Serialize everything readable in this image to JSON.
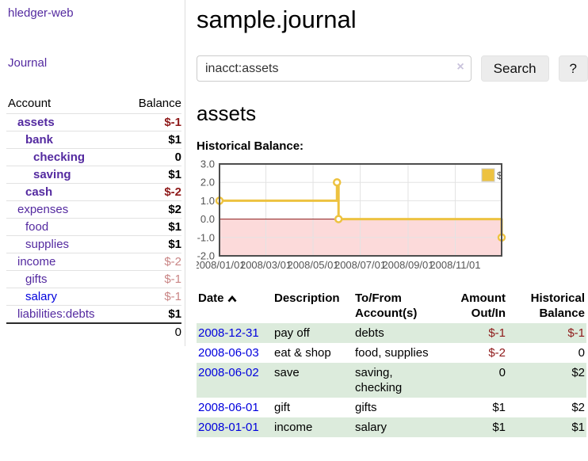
{
  "sidebar": {
    "brand": "hledger-web",
    "nav": {
      "journal": "Journal"
    },
    "accounts": {
      "col_account": "Account",
      "col_balance": "Balance",
      "rows": [
        {
          "name": "assets",
          "balance": "$-1",
          "depth": 1,
          "bold": true,
          "muted": false,
          "link_blue": false
        },
        {
          "name": "bank",
          "balance": "$1",
          "depth": 2,
          "bold": true,
          "muted": false,
          "link_blue": false
        },
        {
          "name": "checking",
          "balance": "0",
          "depth": 3,
          "bold": true,
          "muted": false,
          "link_blue": false
        },
        {
          "name": "saving",
          "balance": "$1",
          "depth": 3,
          "bold": true,
          "muted": false,
          "link_blue": false
        },
        {
          "name": "cash",
          "balance": "$-2",
          "depth": 2,
          "bold": true,
          "muted": false,
          "link_blue": false
        },
        {
          "name": "expenses",
          "balance": "$2",
          "depth": 1,
          "bold": false,
          "muted": false,
          "link_blue": false
        },
        {
          "name": "food",
          "balance": "$1",
          "depth": 2,
          "bold": false,
          "muted": false,
          "link_blue": false
        },
        {
          "name": "supplies",
          "balance": "$1",
          "depth": 2,
          "bold": false,
          "muted": false,
          "link_blue": false
        },
        {
          "name": "income",
          "balance": "$-2",
          "depth": 1,
          "bold": false,
          "muted": true,
          "link_blue": false
        },
        {
          "name": "gifts",
          "balance": "$-1",
          "depth": 2,
          "bold": false,
          "muted": true,
          "link_blue": false
        },
        {
          "name": "salary",
          "balance": "$-1",
          "depth": 2,
          "bold": false,
          "muted": true,
          "link_blue": true
        },
        {
          "name": "liabilities:debts",
          "balance": "$1",
          "depth": 1,
          "bold": false,
          "muted": false,
          "link_blue": false
        }
      ],
      "total": "0"
    }
  },
  "main": {
    "title": "sample.journal",
    "search": {
      "value": "inacct:assets",
      "clear_label": "×",
      "button_label": "Search",
      "help_label": "?"
    },
    "account_heading": "assets",
    "register": {
      "headers": {
        "date": "Date",
        "description": "Description",
        "accounts": "To/From Account(s)",
        "amount": "Amount Out/In",
        "balance": "Historical Balance"
      },
      "rows": [
        {
          "date": "2008-12-31",
          "description": "pay off",
          "accounts": "debts",
          "amount": "$-1",
          "balance": "$-1"
        },
        {
          "date": "2008-06-03",
          "description": "eat & shop",
          "accounts": "food, supplies",
          "amount": "$-2",
          "balance": "0"
        },
        {
          "date": "2008-06-02",
          "description": "save",
          "accounts": "saving,\nchecking",
          "amount": "0",
          "balance": "$2"
        },
        {
          "date": "2008-06-01",
          "description": "gift",
          "accounts": "gifts",
          "amount": "$1",
          "balance": "$2"
        },
        {
          "date": "2008-01-01",
          "description": "income",
          "accounts": "salary",
          "amount": "$1",
          "balance": "$1"
        }
      ]
    }
  },
  "chart_data": {
    "type": "line",
    "title": "Historical Balance:",
    "step": true,
    "legend": [
      "$"
    ],
    "legend_position": "top-right",
    "x": [
      "2008-01-01",
      "2008-06-01",
      "2008-06-03",
      "2008-12-31"
    ],
    "series": [
      {
        "name": "$",
        "values": [
          1,
          2,
          0,
          -1
        ]
      }
    ],
    "ylim": [
      -2.0,
      3.0
    ],
    "yticks": [
      3.0,
      2.0,
      1.0,
      0.0,
      -1.0,
      -2.0
    ],
    "xticks": [
      "2008/01/01",
      "2008/03/01",
      "2008/05/01",
      "2008/07/01",
      "2008/09/01",
      "2008/11/01"
    ],
    "grid": true,
    "negative_region_shaded": true,
    "colors": {
      "line": "#EDC240",
      "negative_fill": "#fcdada",
      "zero_line": "#8b1a1a",
      "grid": "#e3e3e3",
      "border": "#4d4d4d"
    }
  }
}
